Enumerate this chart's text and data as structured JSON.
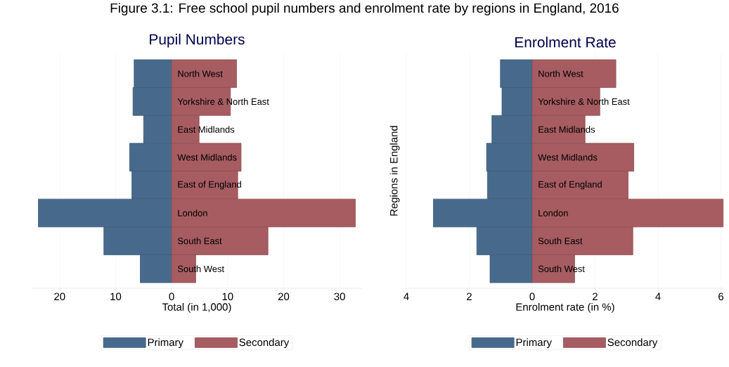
{
  "chart_data": [
    {
      "type": "bar",
      "orientation": "horizontal",
      "stacked": true,
      "title": "Pupil Numbers",
      "xlabel": "Total (in 1,000)",
      "annotations": [
        "Figure 3.1: Free school pupil numbers and enrolment rate by regions in England, 2016"
      ],
      "categories": [
        "North West",
        "Yorkshire & North East",
        "East Midlands",
        "West Midlands",
        "East of England",
        "London",
        "South East",
        "South West"
      ],
      "series": [
        {
          "name": "Primary",
          "color": "#476a8c",
          "values": [
            -6.7,
            -6.9,
            -5.0,
            -7.5,
            -7.1,
            -23.8,
            -12.1,
            -5.6
          ]
        },
        {
          "name": "Secondary",
          "color": "#a65c61",
          "values": [
            11.6,
            10.5,
            4.9,
            12.4,
            11.8,
            32.8,
            17.2,
            4.3
          ]
        }
      ],
      "xlim": [
        -25,
        34
      ],
      "xticks": [
        {
          "value": -20,
          "label": "20"
        },
        {
          "value": -10,
          "label": "10"
        },
        0,
        10,
        20,
        30
      ],
      "grid": "x",
      "legend": "bottom"
    },
    {
      "type": "bar",
      "orientation": "horizontal",
      "stacked": true,
      "title": "Enrolment Rate",
      "xlabel": "Enrolment rate (in %)",
      "ylabel": "Regions in England",
      "categories": [
        "North West",
        "Yorkshire & North East",
        "East Midlands",
        "West Midlands",
        "East of England",
        "London",
        "South East",
        "South West"
      ],
      "series": [
        {
          "name": "Primary",
          "color": "#476a8c",
          "values": [
            -1.01,
            -0.96,
            -1.28,
            -1.45,
            -1.42,
            -3.14,
            -1.76,
            -1.34
          ]
        },
        {
          "name": "Secondary",
          "color": "#a65c61",
          "values": [
            2.66,
            2.15,
            1.68,
            3.23,
            3.05,
            6.07,
            3.2,
            1.35
          ]
        }
      ],
      "xlim": [
        -4,
        6.1
      ],
      "xticks": [
        {
          "value": -4,
          "label": "4"
        },
        {
          "value": -2,
          "label": "2"
        },
        0,
        2,
        4,
        6
      ],
      "grid": "x",
      "legend": "bottom"
    }
  ]
}
